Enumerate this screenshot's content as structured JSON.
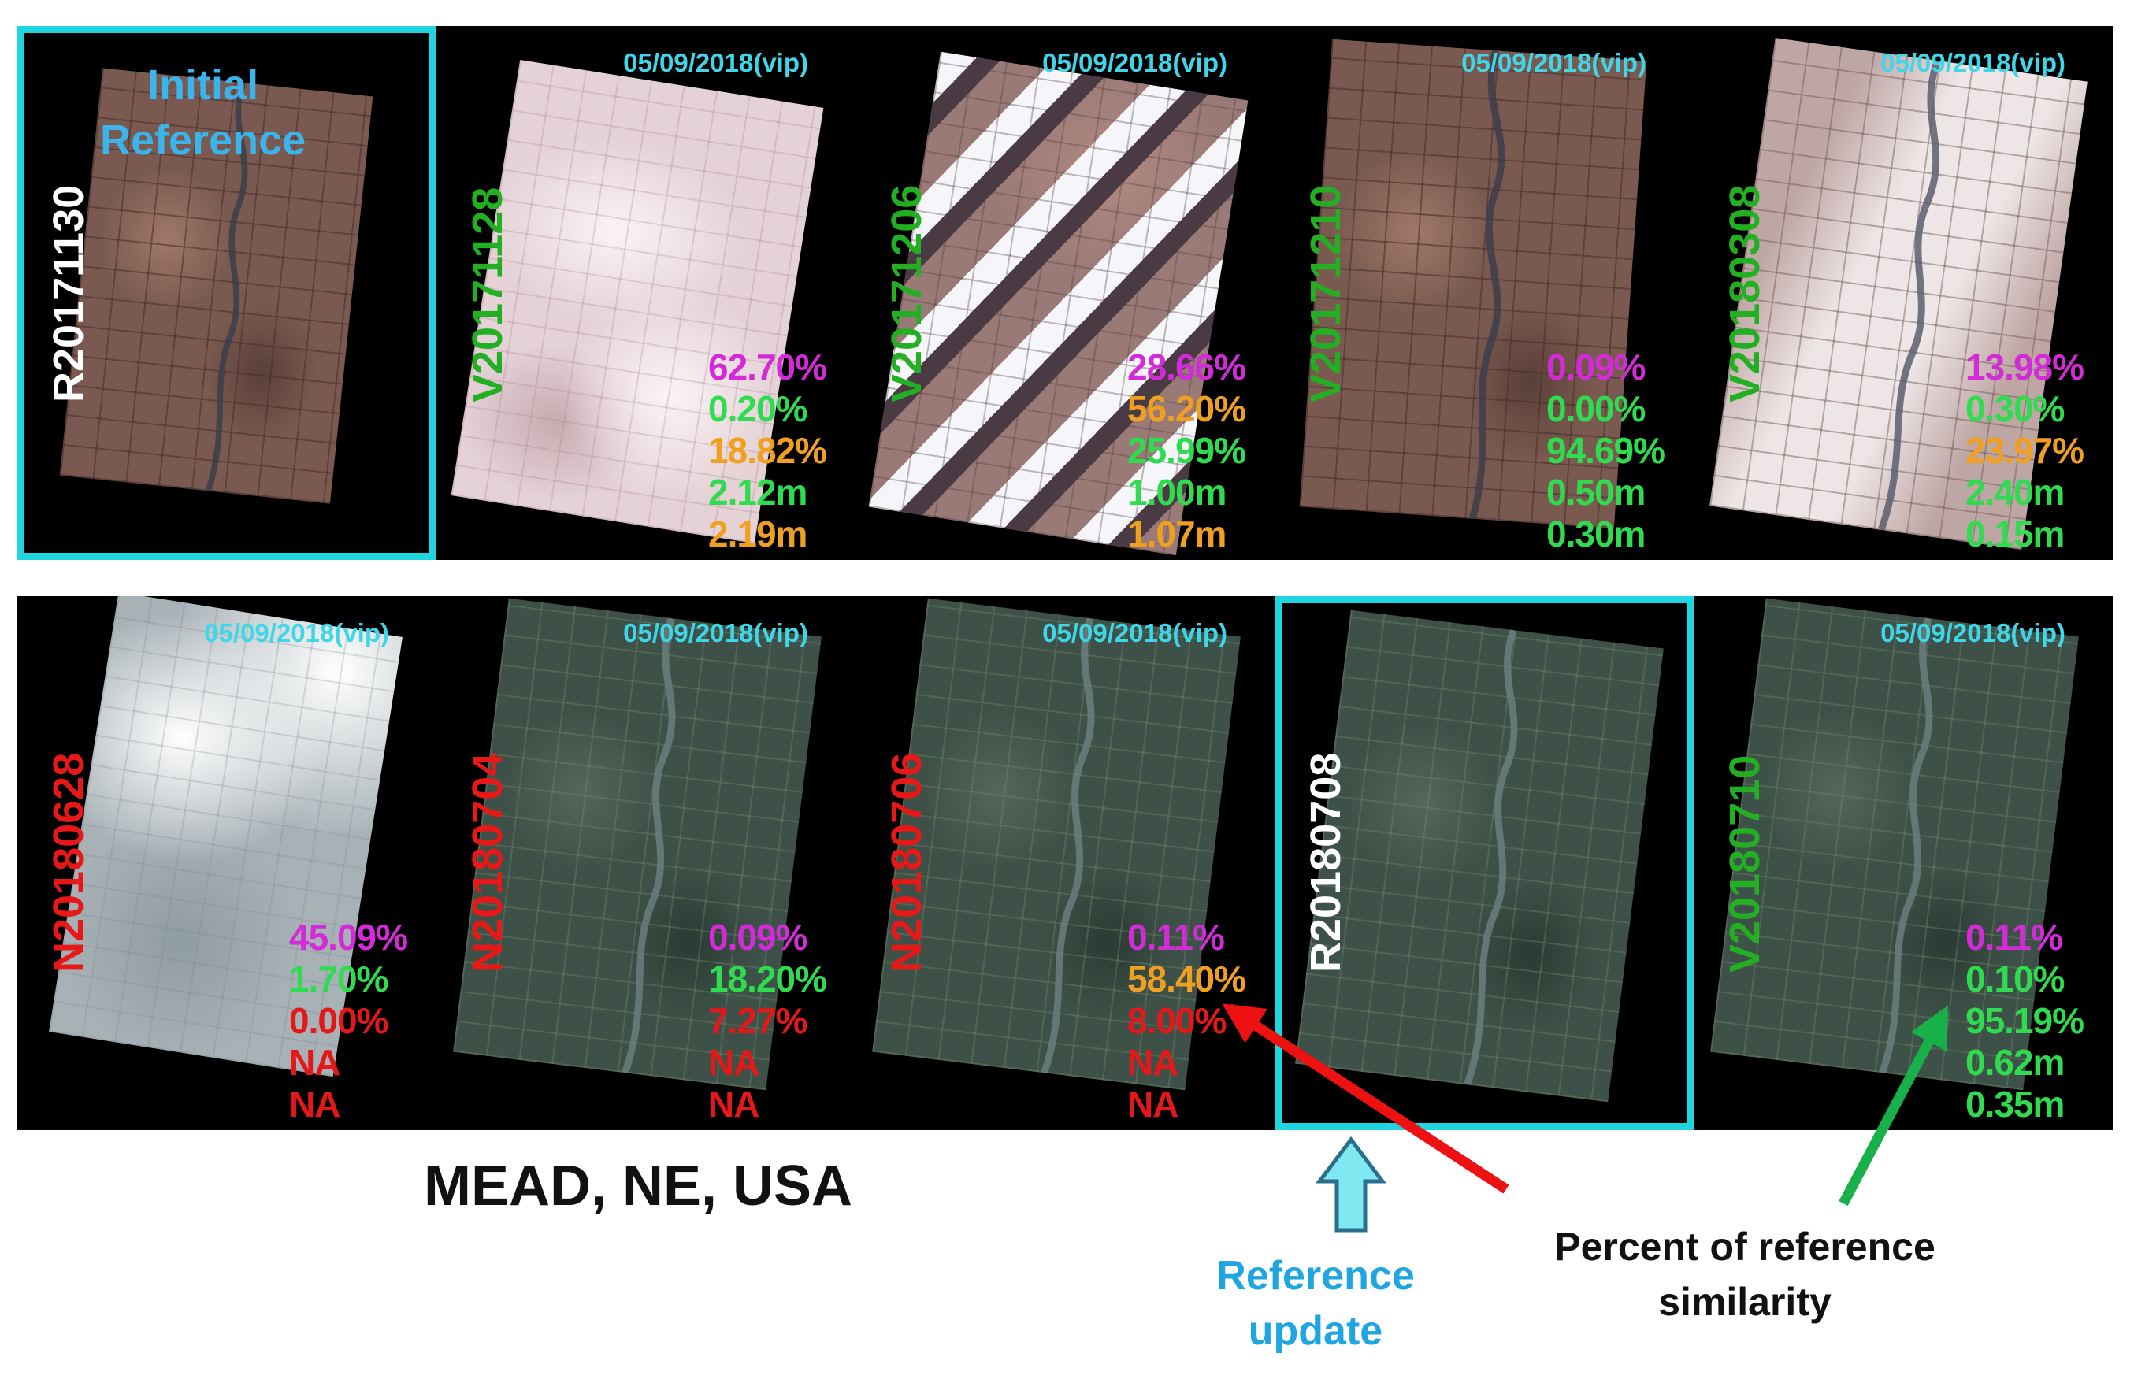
{
  "date_tag": "05/09/2018(vip)",
  "initial_reference": [
    "Initial",
    "Reference"
  ],
  "stat_colors": {
    "magenta": "#d42bd8",
    "green": "#2fdb4f",
    "orange": "#f0a020",
    "red": "#e41818"
  },
  "label_colors": {
    "R": "#ffffff",
    "V": "#22b022",
    "N": "#e81818"
  },
  "frame_color": "#1fd6e0",
  "top_row": [
    {
      "label": "R20171130",
      "kind": "R",
      "scene": "brown",
      "reference": true,
      "stats": []
    },
    {
      "label": "V20171128",
      "kind": "V",
      "scene": "cloudy",
      "reference": false,
      "stats": [
        {
          "v": "62.70%",
          "c": "magenta"
        },
        {
          "v": "0.20%",
          "c": "green"
        },
        {
          "v": "18.82%",
          "c": "orange"
        },
        {
          "v": "2.12m",
          "c": "green"
        },
        {
          "v": "2.19m",
          "c": "orange"
        }
      ]
    },
    {
      "label": "V20171206",
      "kind": "V",
      "scene": "snowy",
      "reference": false,
      "stats": [
        {
          "v": "28.66%",
          "c": "magenta"
        },
        {
          "v": "56.20%",
          "c": "orange"
        },
        {
          "v": "25.99%",
          "c": "green"
        },
        {
          "v": "1.00m",
          "c": "green"
        },
        {
          "v": "1.07m",
          "c": "orange"
        }
      ]
    },
    {
      "label": "V20171210",
      "kind": "V",
      "scene": "brown",
      "reference": false,
      "stats": [
        {
          "v": "0.09%",
          "c": "magenta"
        },
        {
          "v": "0.00%",
          "c": "green"
        },
        {
          "v": "94.69%",
          "c": "green"
        },
        {
          "v": "0.50m",
          "c": "green"
        },
        {
          "v": "0.30m",
          "c": "green"
        }
      ]
    },
    {
      "label": "V20180308",
      "kind": "V",
      "scene": "pale",
      "reference": false,
      "stats": [
        {
          "v": "13.98%",
          "c": "magenta"
        },
        {
          "v": "0.30%",
          "c": "green"
        },
        {
          "v": "23.97%",
          "c": "orange"
        },
        {
          "v": "2.40m",
          "c": "green"
        },
        {
          "v": "0.15m",
          "c": "green"
        }
      ]
    }
  ],
  "bottom_row": [
    {
      "label": "N20180628",
      "kind": "N",
      "scene": "haze",
      "reference": false,
      "stats": [
        {
          "v": "45.09%",
          "c": "magenta"
        },
        {
          "v": "1.70%",
          "c": "green"
        },
        {
          "v": "0.00%",
          "c": "red"
        },
        {
          "v": "NA",
          "c": "red"
        },
        {
          "v": "NA",
          "c": "red"
        }
      ]
    },
    {
      "label": "N20180704",
      "kind": "N",
      "scene": "green",
      "reference": false,
      "stats": [
        {
          "v": "0.09%",
          "c": "magenta"
        },
        {
          "v": "18.20%",
          "c": "green"
        },
        {
          "v": "7.27%",
          "c": "red"
        },
        {
          "v": "NA",
          "c": "red"
        },
        {
          "v": "NA",
          "c": "red"
        }
      ]
    },
    {
      "label": "N20180706",
      "kind": "N",
      "scene": "green",
      "reference": false,
      "stats": [
        {
          "v": "0.11%",
          "c": "magenta"
        },
        {
          "v": "58.40%",
          "c": "orange"
        },
        {
          "v": "8.00%",
          "c": "red"
        },
        {
          "v": "NA",
          "c": "red"
        },
        {
          "v": "NA",
          "c": "red"
        }
      ]
    },
    {
      "label": "R20180708",
      "kind": "R",
      "scene": "green",
      "reference": true,
      "stats": []
    },
    {
      "label": "V20180710",
      "kind": "V",
      "scene": "green",
      "reference": false,
      "stats": [
        {
          "v": "0.11%",
          "c": "magenta"
        },
        {
          "v": "0.10%",
          "c": "green"
        },
        {
          "v": "95.19%",
          "c": "green"
        },
        {
          "v": "0.62m",
          "c": "green"
        },
        {
          "v": "0.35m",
          "c": "green"
        }
      ]
    }
  ],
  "site_caption": "MEAD, NE, USA",
  "reference_update": [
    "Reference",
    "update"
  ],
  "percent_similarity": [
    "Percent of reference",
    "similarity"
  ],
  "arrow_colors": {
    "red": "#ee1111",
    "green": "#18b048",
    "up": "#7fe8f0"
  }
}
